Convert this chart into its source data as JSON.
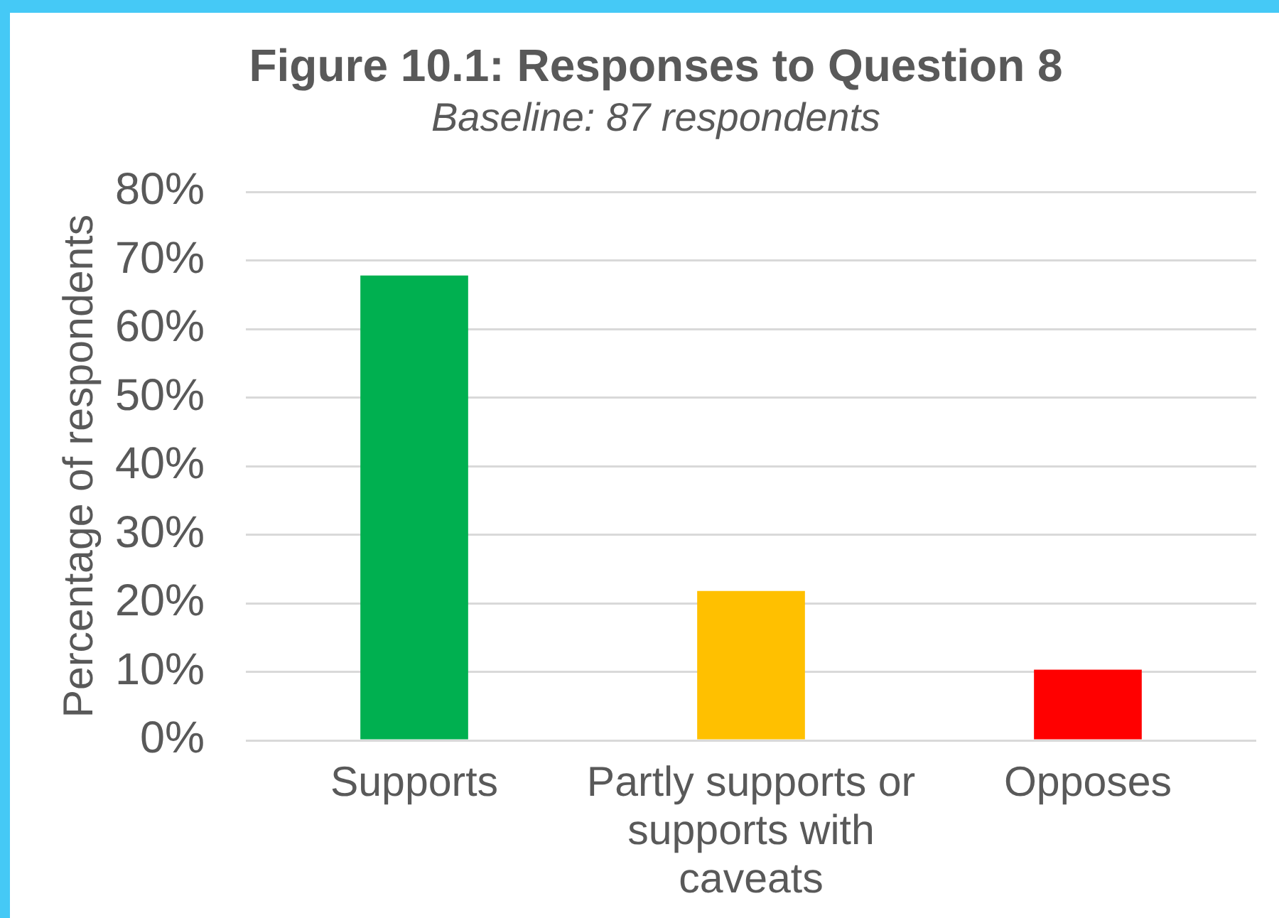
{
  "chart_data": {
    "type": "bar",
    "title": "Figure 10.1: Responses to Question 8",
    "subtitle": "Baseline: 87 respondents",
    "ylabel": "Percentage of respondents",
    "categories": [
      "Supports",
      "Partly supports or supports with caveats",
      "Opposes"
    ],
    "values": [
      67.8,
      21.8,
      10.3
    ],
    "colors": [
      "#00b050",
      "#ffc000",
      "#ff0000"
    ],
    "ylim": [
      0,
      80
    ],
    "yticks": [
      {
        "value": 0,
        "label": "0%"
      },
      {
        "value": 10,
        "label": "10%"
      },
      {
        "value": 20,
        "label": "20%"
      },
      {
        "value": 30,
        "label": "30%"
      },
      {
        "value": 40,
        "label": "40%"
      },
      {
        "value": 50,
        "label": "50%"
      },
      {
        "value": 60,
        "label": "60%"
      },
      {
        "value": 70,
        "label": "70%"
      },
      {
        "value": 80,
        "label": "80%"
      }
    ],
    "grid": "y"
  }
}
